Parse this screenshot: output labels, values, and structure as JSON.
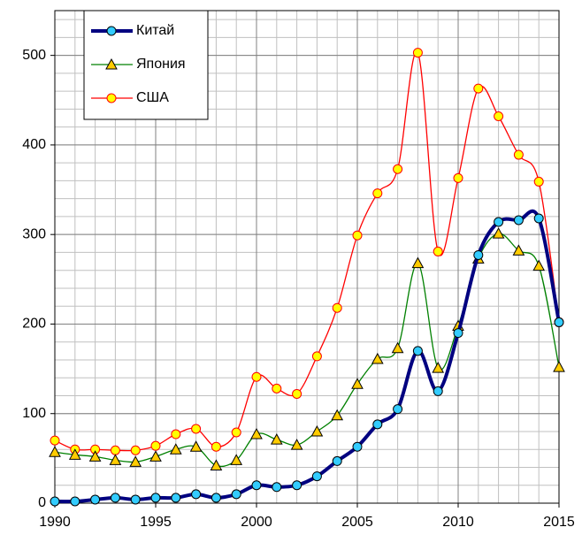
{
  "chart_data": {
    "type": "line",
    "x": [
      1990,
      1991,
      1992,
      1993,
      1994,
      1995,
      1996,
      1997,
      1998,
      1999,
      2000,
      2001,
      2002,
      2003,
      2004,
      2005,
      2006,
      2007,
      2008,
      2009,
      2010,
      2011,
      2012,
      2013,
      2014,
      2015
    ],
    "series": [
      {
        "name": "Китай",
        "color": "#000080",
        "marker": "circle",
        "marker_color": "#33ccff",
        "line_width": 4,
        "values": [
          2,
          2,
          4,
          6,
          4,
          6,
          6,
          10,
          6,
          10,
          20,
          18,
          20,
          30,
          47,
          63,
          88,
          105,
          170,
          125,
          190,
          277,
          314,
          316,
          318,
          202
        ]
      },
      {
        "name": "Япония",
        "color": "#008000",
        "marker": "triangle",
        "marker_color": "#ffcc00",
        "line_width": 1.3,
        "values": [
          57,
          54,
          52,
          48,
          46,
          52,
          60,
          63,
          42,
          48,
          77,
          71,
          65,
          80,
          98,
          133,
          161,
          173,
          268,
          151,
          198,
          273,
          301,
          282,
          265,
          152
        ]
      },
      {
        "name": "США",
        "color": "#ff0000",
        "marker": "circle",
        "marker_color": "#ffff00",
        "line_width": 1.3,
        "values": [
          70,
          60,
          60,
          59,
          59,
          64,
          77,
          83,
          63,
          79,
          141,
          128,
          122,
          164,
          218,
          299,
          346,
          373,
          503,
          281,
          363,
          463,
          432,
          389,
          359,
          202
        ]
      }
    ],
    "xlim": [
      1990,
      2015
    ],
    "xticks": [
      1990,
      1995,
      2000,
      2005,
      2010,
      2015
    ],
    "ylim": [
      0,
      550
    ],
    "yticks": [
      0,
      100,
      200,
      300,
      400,
      500
    ],
    "grid": true,
    "minor_grid": {
      "x": 1,
      "y": 20
    },
    "smooth": true,
    "legend": "upper left"
  }
}
